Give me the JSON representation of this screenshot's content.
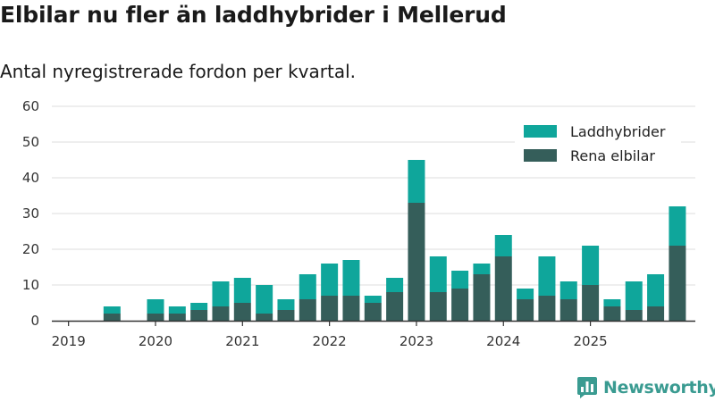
{
  "title": "Elbilar nu fler än laddhybrider i Mellerud",
  "subtitle": "Antal nyregistrerade fordon per kvartal.",
  "brand": {
    "name": "Newsworthy"
  },
  "chart_data": {
    "type": "bar",
    "stacked": true,
    "title": "Elbilar nu fler än laddhybrider i Mellerud",
    "subtitle": "Antal nyregistrerade fordon per kvartal.",
    "xlabel": "",
    "ylabel": "",
    "ylim": [
      0,
      60
    ],
    "yticks": [
      0,
      10,
      20,
      30,
      40,
      50,
      60
    ],
    "grid": true,
    "legend_position": "top-right",
    "year_labels": [
      "2019",
      "2020",
      "2021",
      "2022",
      "2023",
      "2024",
      "2025"
    ],
    "categories": [
      "2019 Q1",
      "2019 Q2",
      "2019 Q3",
      "2019 Q4",
      "2020 Q1",
      "2020 Q2",
      "2020 Q3",
      "2020 Q4",
      "2021 Q1",
      "2021 Q2",
      "2021 Q3",
      "2021 Q4",
      "2022 Q1",
      "2022 Q2",
      "2022 Q3",
      "2022 Q4",
      "2023 Q1",
      "2023 Q2",
      "2023 Q3",
      "2023 Q4",
      "2024 Q1",
      "2024 Q2",
      "2024 Q3",
      "2024 Q4",
      "2025 Q1",
      "2025 Q2",
      "2025 Q3",
      "2025 Q4"
    ],
    "series": [
      {
        "name": "Rena elbilar",
        "color": "#355e5a",
        "values": [
          0,
          2,
          0,
          2,
          2,
          3,
          4,
          5,
          2,
          3,
          6,
          7,
          7,
          5,
          8,
          33,
          8,
          9,
          13,
          18,
          6,
          7,
          6,
          10,
          4,
          3,
          4,
          21
        ]
      },
      {
        "name": "Laddhybrider",
        "color": "#0fa69b",
        "values": [
          0,
          2,
          0,
          4,
          2,
          2,
          7,
          7,
          8,
          3,
          7,
          9,
          10,
          2,
          4,
          12,
          10,
          5,
          3,
          6,
          3,
          11,
          5,
          11,
          2,
          8,
          9,
          11
        ]
      }
    ]
  }
}
